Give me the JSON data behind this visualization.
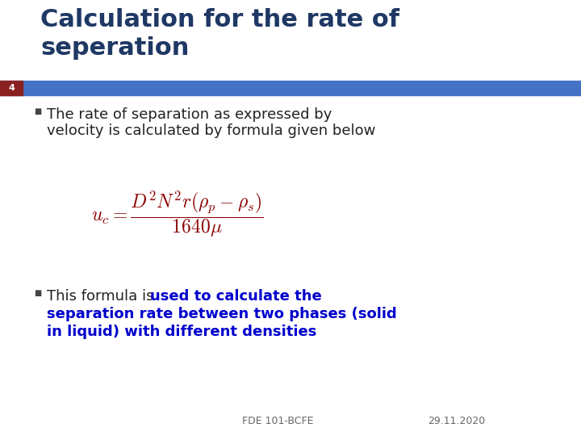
{
  "title_line1": "Calculation for the rate of",
  "title_line2": "seperation",
  "title_color": "#1F3864",
  "slide_number": "4",
  "slide_number_bg": "#8B2020",
  "header_bar_color": "#4472C4",
  "bullet1_text1": "The rate of separation as expressed by",
  "bullet1_text2": "velocity is calculated by formula given below",
  "bullet_color": "#222222",
  "blue_text_color": "#0000CD",
  "formula_color": "#8B0000",
  "footer_left": "FDE 101-BCFE",
  "footer_right": "29.11.2020",
  "bg_color": "#FFFFFF",
  "bullet_square_color": "#444444",
  "title_fontsize": 22,
  "body_fontsize": 13,
  "formula_fontsize": 17
}
